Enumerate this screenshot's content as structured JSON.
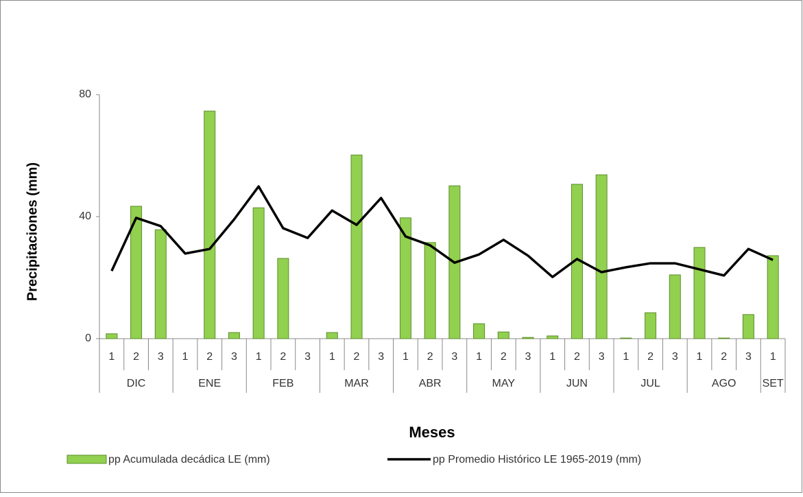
{
  "chart_data": {
    "type": "bar_line",
    "x_label": "Meses",
    "y_label": "Precipitaciones (mm)",
    "categories": [
      "1",
      "2",
      "3",
      "1",
      "2",
      "3",
      "1",
      "2",
      "3",
      "1",
      "2",
      "3",
      "1",
      "2",
      "3",
      "1",
      "2",
      "3",
      "1",
      "2",
      "3",
      "1",
      "2",
      "3",
      "1",
      "2",
      "3",
      "1"
    ],
    "category_groups": [
      "DIC",
      "DIC",
      "DIC",
      "ENE",
      "ENE",
      "ENE",
      "FEB",
      "FEB",
      "FEB",
      "MAR",
      "MAR",
      "MAR",
      "ABR",
      "ABR",
      "ABR",
      "MAY",
      "MAY",
      "MAY",
      "JUN",
      "JUN",
      "JUN",
      "JUL",
      "JUL",
      "JUL",
      "AGO",
      "AGO",
      "AGO",
      "SET"
    ],
    "series": [
      {
        "name": "pp Acumulada decádica LE (mm)",
        "type": "bar",
        "color": "#92d050",
        "values": [
          1.6,
          43.4,
          35.7,
          0,
          74.6,
          2.0,
          42.9,
          26.3,
          0,
          2.0,
          60.2,
          0,
          39.6,
          31.5,
          50.1,
          4.9,
          2.2,
          0.4,
          0.9,
          50.6,
          53.7,
          0.2,
          8.5,
          20.9,
          29.9,
          0.2,
          7.9,
          27.2
        ]
      },
      {
        "name": "pp Promedio Histórico LE 1965-2019 (mm)",
        "type": "line",
        "color": "#000000",
        "values": [
          22.2,
          39.6,
          36.9,
          27.9,
          29.4,
          39.1,
          49.9,
          36.2,
          33.0,
          42.0,
          37.3,
          46.1,
          33.5,
          30.6,
          24.9,
          27.6,
          32.4,
          27.2,
          20.2,
          26.1,
          21.8,
          23.4,
          24.7,
          24.7,
          22.7,
          20.7,
          29.4,
          25.8
        ]
      }
    ],
    "ylim": [
      0,
      80
    ],
    "yticks": [
      0,
      40,
      80
    ],
    "grid": false,
    "legend": "bottom"
  }
}
